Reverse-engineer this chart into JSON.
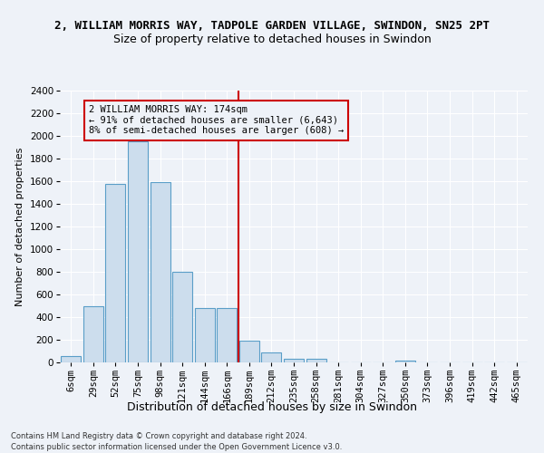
{
  "title_line1": "2, WILLIAM MORRIS WAY, TADPOLE GARDEN VILLAGE, SWINDON, SN25 2PT",
  "title_line2": "Size of property relative to detached houses in Swindon",
  "xlabel": "Distribution of detached houses by size in Swindon",
  "ylabel": "Number of detached properties",
  "categories": [
    "6sqm",
    "29sqm",
    "52sqm",
    "75sqm",
    "98sqm",
    "121sqm",
    "144sqm",
    "166sqm",
    "189sqm",
    "212sqm",
    "235sqm",
    "258sqm",
    "281sqm",
    "304sqm",
    "327sqm",
    "350sqm",
    "373sqm",
    "396sqm",
    "419sqm",
    "442sqm",
    "465sqm"
  ],
  "values": [
    60,
    500,
    1580,
    1950,
    1590,
    800,
    480,
    480,
    195,
    90,
    35,
    30,
    0,
    0,
    0,
    20,
    0,
    0,
    0,
    0,
    0
  ],
  "bar_color": "#ccdded",
  "bar_edge_color": "#5a9ec8",
  "vline_index": 7,
  "vline_color": "#cc0000",
  "annotation_text": "2 WILLIAM MORRIS WAY: 174sqm\n← 91% of detached houses are smaller (6,643)\n8% of semi-detached houses are larger (608) →",
  "annotation_box_color": "#cc0000",
  "ylim": [
    0,
    2400
  ],
  "yticks": [
    0,
    200,
    400,
    600,
    800,
    1000,
    1200,
    1400,
    1600,
    1800,
    2000,
    2200,
    2400
  ],
  "footer1": "Contains HM Land Registry data © Crown copyright and database right 2024.",
  "footer2": "Contains public sector information licensed under the Open Government Licence v3.0.",
  "bg_color": "#eef2f8",
  "grid_color": "#ffffff",
  "title1_fontsize": 9,
  "title2_fontsize": 9,
  "xlabel_fontsize": 9,
  "ylabel_fontsize": 8,
  "tick_fontsize": 7.5
}
